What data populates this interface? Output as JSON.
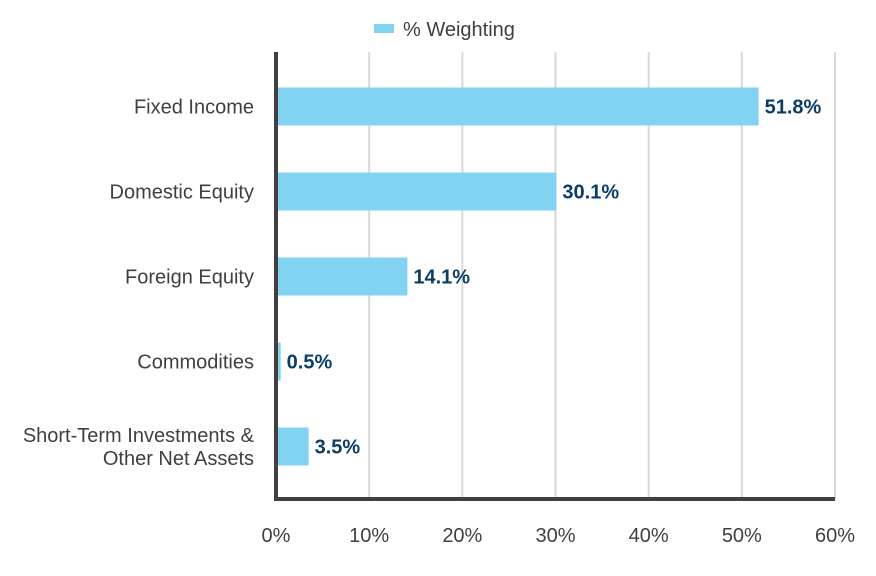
{
  "chart_data": {
    "type": "bar",
    "orientation": "horizontal",
    "categories": [
      [
        "Fixed Income"
      ],
      [
        "Domestic Equity"
      ],
      [
        "Foreign Equity"
      ],
      [
        "Commodities"
      ],
      [
        "Short-Term Investments &",
        "Other Net Assets"
      ]
    ],
    "series": [
      {
        "name": "% Weighting",
        "values": [
          51.8,
          30.1,
          14.1,
          0.5,
          3.5
        ],
        "color": "#82d3f1"
      }
    ],
    "data_labels": [
      "51.8%",
      "30.1%",
      "14.1%",
      "0.5%",
      "3.5%"
    ],
    "xlim": [
      0,
      60
    ],
    "x_ticks": [
      0,
      10,
      20,
      30,
      40,
      50,
      60
    ],
    "x_tick_labels": [
      "0%",
      "10%",
      "20%",
      "30%",
      "40%",
      "50%",
      "60%"
    ],
    "grid": "vertical",
    "legend": "top-center",
    "label_color": "#0b3d66",
    "axis_color": "#404040",
    "grid_color": "#d9d9d9"
  }
}
